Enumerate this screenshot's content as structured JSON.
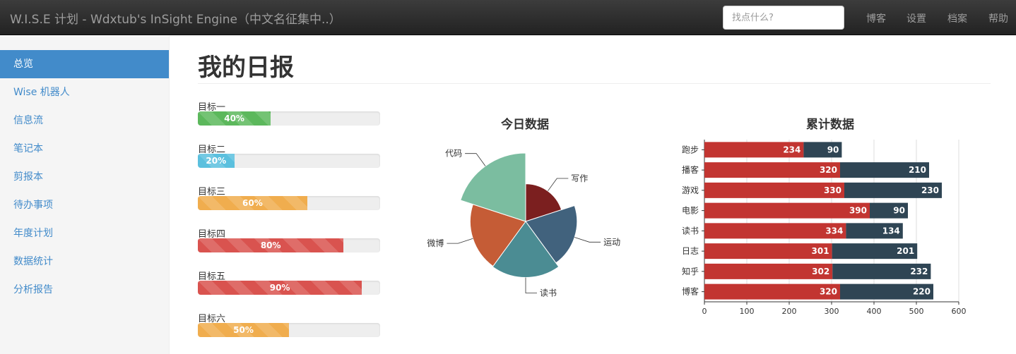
{
  "navbar": {
    "brand": "W.I.S.E 计划 - Wdxtub's InSight Engine（中文名征集中..）",
    "search_placeholder": "找点什么?",
    "links": [
      "博客",
      "设置",
      "档案",
      "帮助"
    ]
  },
  "sidebar": {
    "items": [
      {
        "label": "总览",
        "active": true
      },
      {
        "label": "Wise 机器人"
      },
      {
        "label": "信息流"
      },
      {
        "label": "笔记本"
      },
      {
        "label": "剪报本"
      },
      {
        "label": "待办事项"
      },
      {
        "label": "年度计划"
      },
      {
        "label": "数据统计"
      },
      {
        "label": "分析报告"
      }
    ]
  },
  "main": {
    "title": "我的日报",
    "goals": [
      {
        "label": "目标一",
        "percent": 40,
        "text": "40%",
        "color": "#5cb85c"
      },
      {
        "label": "目标二",
        "percent": 20,
        "text": "20%",
        "color": "#5bc0de"
      },
      {
        "label": "目标三",
        "percent": 60,
        "text": "60%",
        "color": "#f0ad4e"
      },
      {
        "label": "目标四",
        "percent": 80,
        "text": "80%",
        "color": "#d9534f"
      },
      {
        "label": "目标五",
        "percent": 90,
        "text": "90%",
        "color": "#d9534f"
      },
      {
        "label": "目标六",
        "percent": 50,
        "text": "50%",
        "color": "#f0ad4e"
      }
    ]
  },
  "chart_data": [
    {
      "type": "pie",
      "title": "今日数据",
      "chart_kind": "nightingale-rose",
      "slices": [
        {
          "name": "写作",
          "value": 0.55,
          "color": "#7b1f1f"
        },
        {
          "name": "运动",
          "value": 0.75,
          "color": "#41627d"
        },
        {
          "name": "读书",
          "value": 0.82,
          "color": "#4b8c93"
        },
        {
          "name": "微博",
          "value": 0.81,
          "color": "#c55c36"
        },
        {
          "name": "代码",
          "value": 1.0,
          "color": "#7bbda0"
        }
      ]
    },
    {
      "type": "bar",
      "title": "累计数据",
      "orientation": "horizontal",
      "stacked": true,
      "categories": [
        "跑步",
        "播客",
        "游戏",
        "电影",
        "读书",
        "日志",
        "知乎",
        "博客"
      ],
      "series": [
        {
          "values": [
            234,
            320,
            330,
            390,
            334,
            301,
            302,
            320
          ],
          "color": "#c23531"
        },
        {
          "values": [
            90,
            210,
            230,
            90,
            134,
            201,
            232,
            220
          ],
          "color": "#2f4554"
        }
      ],
      "xlim": [
        0,
        600
      ],
      "xticks": [
        0,
        100,
        200,
        300,
        400,
        500,
        600
      ],
      "grid": true
    }
  ]
}
